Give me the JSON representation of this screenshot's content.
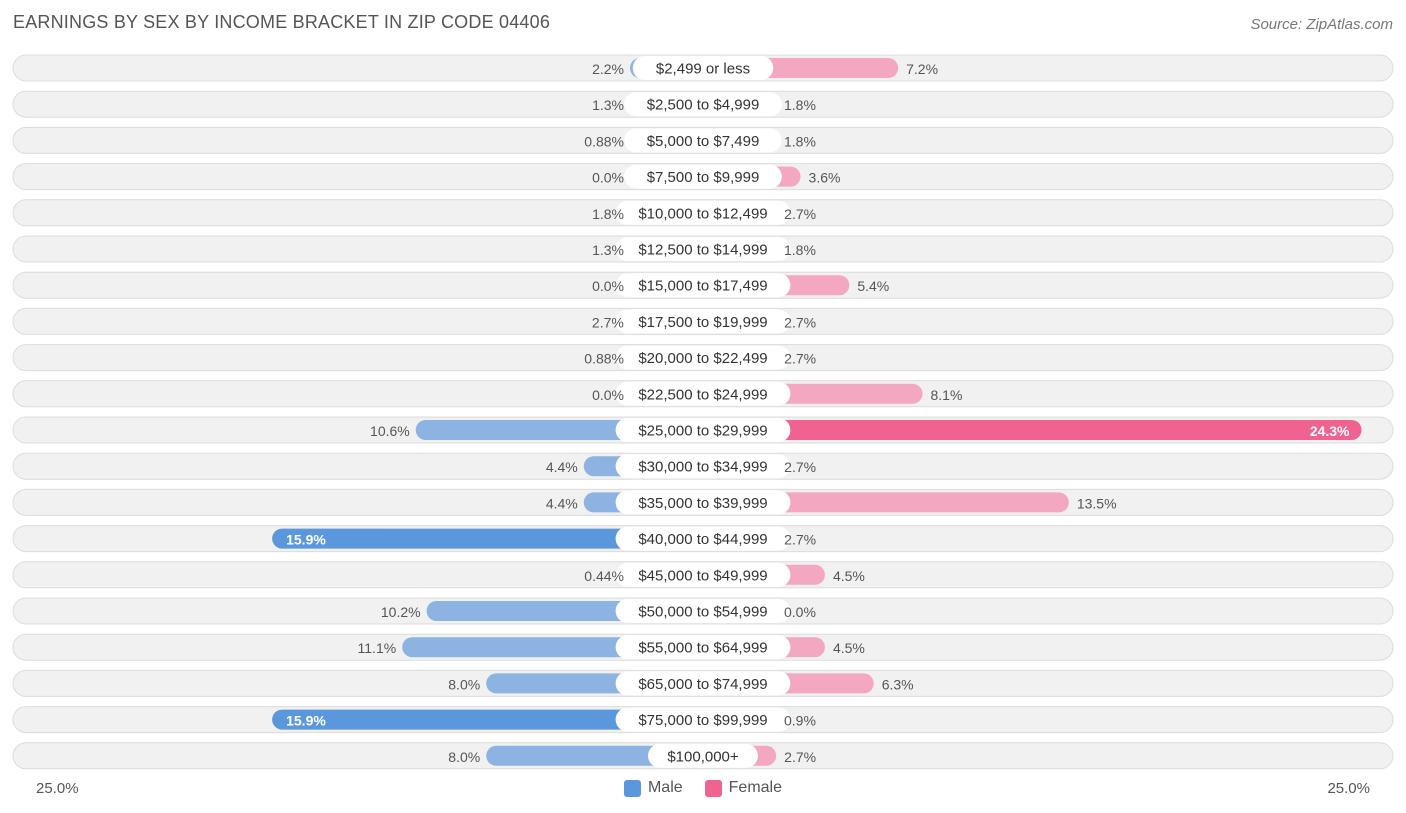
{
  "title": "EARNINGS BY SEX BY INCOME BRACKET IN ZIP CODE 04406",
  "source": "Source: ZipAtlas.com",
  "colors": {
    "male": "#7aa8de",
    "male_strong": "#5b97dc",
    "female": "#f49ab8",
    "female_strong": "#f06390",
    "row_bg": "#f1f1f1",
    "row_border": "#dcdcdc"
  },
  "legend": [
    {
      "label": "Male",
      "color": "#5b97dc"
    },
    {
      "label": "Female",
      "color": "#f06390"
    }
  ],
  "axis": {
    "left_label": "25.0%",
    "right_label": "25.0%"
  },
  "chart_data": {
    "type": "bar",
    "orientation": "horizontal-diverging",
    "title": "EARNINGS BY SEX BY INCOME BRACKET IN ZIP CODE 04406",
    "categories": [
      "$2,499 or less",
      "$2,500 to $4,999",
      "$5,000 to $7,499",
      "$7,500 to $9,999",
      "$10,000 to $12,499",
      "$12,500 to $14,999",
      "$15,000 to $17,499",
      "$17,500 to $19,999",
      "$20,000 to $22,499",
      "$22,500 to $24,999",
      "$25,000 to $29,999",
      "$30,000 to $34,999",
      "$35,000 to $39,999",
      "$40,000 to $44,999",
      "$45,000 to $49,999",
      "$50,000 to $54,999",
      "$55,000 to $64,999",
      "$65,000 to $74,999",
      "$75,000 to $99,999",
      "$100,000+"
    ],
    "series": [
      {
        "name": "Male",
        "values": [
          2.2,
          1.3,
          0.88,
          0.0,
          1.8,
          1.3,
          0.0,
          2.7,
          0.88,
          0.0,
          10.6,
          4.4,
          4.4,
          15.9,
          0.44,
          10.2,
          11.1,
          8.0,
          15.9,
          8.0
        ],
        "labels": [
          "2.2%",
          "1.3%",
          "0.88%",
          "0.0%",
          "1.8%",
          "1.3%",
          "0.0%",
          "2.7%",
          "0.88%",
          "0.0%",
          "10.6%",
          "4.4%",
          "4.4%",
          "15.9%",
          "0.44%",
          "10.2%",
          "11.1%",
          "8.0%",
          "15.9%",
          "8.0%"
        ]
      },
      {
        "name": "Female",
        "values": [
          7.2,
          1.8,
          1.8,
          3.6,
          2.7,
          1.8,
          5.4,
          2.7,
          2.7,
          8.1,
          24.3,
          2.7,
          13.5,
          2.7,
          4.5,
          0.0,
          4.5,
          6.3,
          0.9,
          2.7
        ],
        "labels": [
          "7.2%",
          "1.8%",
          "1.8%",
          "3.6%",
          "2.7%",
          "1.8%",
          "5.4%",
          "2.7%",
          "2.7%",
          "8.1%",
          "24.3%",
          "2.7%",
          "13.5%",
          "2.7%",
          "4.5%",
          "0.0%",
          "4.5%",
          "6.3%",
          "0.9%",
          "2.7%"
        ]
      }
    ],
    "xlim": [
      -25,
      25
    ],
    "xlabel_left": "25.0%",
    "xlabel_right": "25.0%",
    "legend_position": "bottom-center"
  }
}
